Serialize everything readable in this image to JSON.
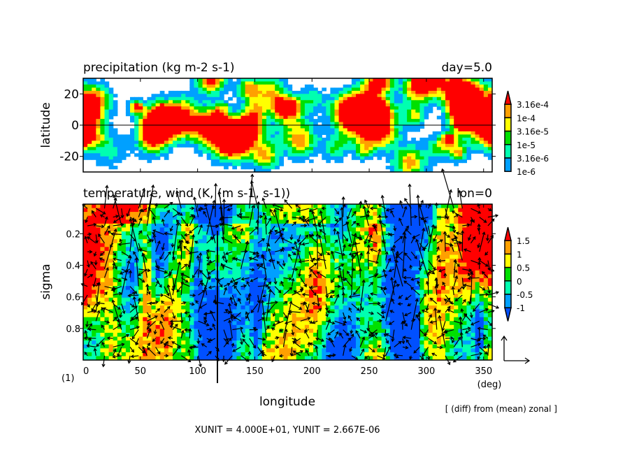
{
  "chart_data": [
    {
      "type": "heatmap",
      "title": "precipitation (kg m-2 s-1)",
      "title_right": "day=5.0",
      "ylabel": "latitude",
      "xlim": [
        0,
        357.5
      ],
      "ylim": [
        -30,
        30
      ],
      "yticks": [
        "20",
        "0",
        "-20"
      ],
      "ytick_values": [
        20,
        0,
        -20
      ],
      "xtick_values": [
        0,
        50,
        100,
        150,
        200,
        250,
        300,
        350
      ],
      "legend": {
        "placement": "right",
        "labels": [
          "3.16e-4",
          "1e-4",
          "3.16e-5",
          "1e-5",
          "3.16e-6",
          "1e-6"
        ],
        "colors": [
          "#ff0000",
          "#ffa000",
          "#ffff00",
          "#00e000",
          "#00ffb0",
          "#00a0ff"
        ]
      }
    },
    {
      "type": "heatmap",
      "title": "temperature, wind (K, (m s-1, s-1))",
      "title_right": "lon=0",
      "ylabel": "sigma",
      "xlabel": "longitude",
      "xunit_label": "(deg)",
      "xlim": [
        0,
        357.5
      ],
      "ylim": [
        1.0,
        0.013
      ],
      "yticks": [
        "0.2",
        "0.4",
        "0.6",
        "0.8"
      ],
      "ytick_values": [
        0.2,
        0.4,
        0.6,
        0.8
      ],
      "xticks": [
        "0",
        "50",
        "100",
        "150",
        "200",
        "250",
        "300",
        "350"
      ],
      "xtick_values": [
        0,
        50,
        100,
        150,
        200,
        250,
        300,
        350
      ],
      "legend": {
        "placement": "right",
        "labels": [
          "1.5",
          "1",
          "0.5",
          "0",
          "-0.5",
          "-1"
        ],
        "colors": [
          "#ff0000",
          "#ffa000",
          "#ffff00",
          "#00e000",
          "#00ffb0",
          "#00a0ff",
          "#0050ff"
        ]
      },
      "vector_overlay": true
    }
  ],
  "footer": {
    "frame_label": "(1)",
    "diff_note": "[ (diff) from (mean) zonal ]",
    "units": "XUNIT = 4.000E+01, YUNIT = 2.667E-06"
  }
}
